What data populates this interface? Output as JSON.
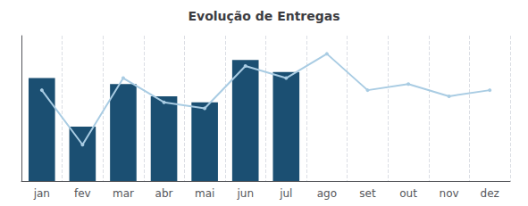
{
  "chart_data": {
    "type": "bar",
    "title": "Evolução de Entregas",
    "categories": [
      "jan",
      "fev",
      "mar",
      "abr",
      "mai",
      "jun",
      "jul",
      "ago",
      "set",
      "out",
      "nov",
      "dez"
    ],
    "series": [
      {
        "type": "bar",
        "color": "#1b4f72",
        "values": [
          95,
          87,
          94,
          92,
          91,
          98,
          96,
          null,
          null,
          null,
          null,
          null
        ]
      },
      {
        "type": "line",
        "color": "#a9cce3",
        "marker": "circle",
        "values": [
          93,
          84,
          95,
          91,
          90,
          97,
          95,
          99,
          93,
          94,
          92,
          93
        ]
      }
    ],
    "ylim": [
      78,
      102
    ],
    "tick_labels": "x",
    "grid": true
  }
}
